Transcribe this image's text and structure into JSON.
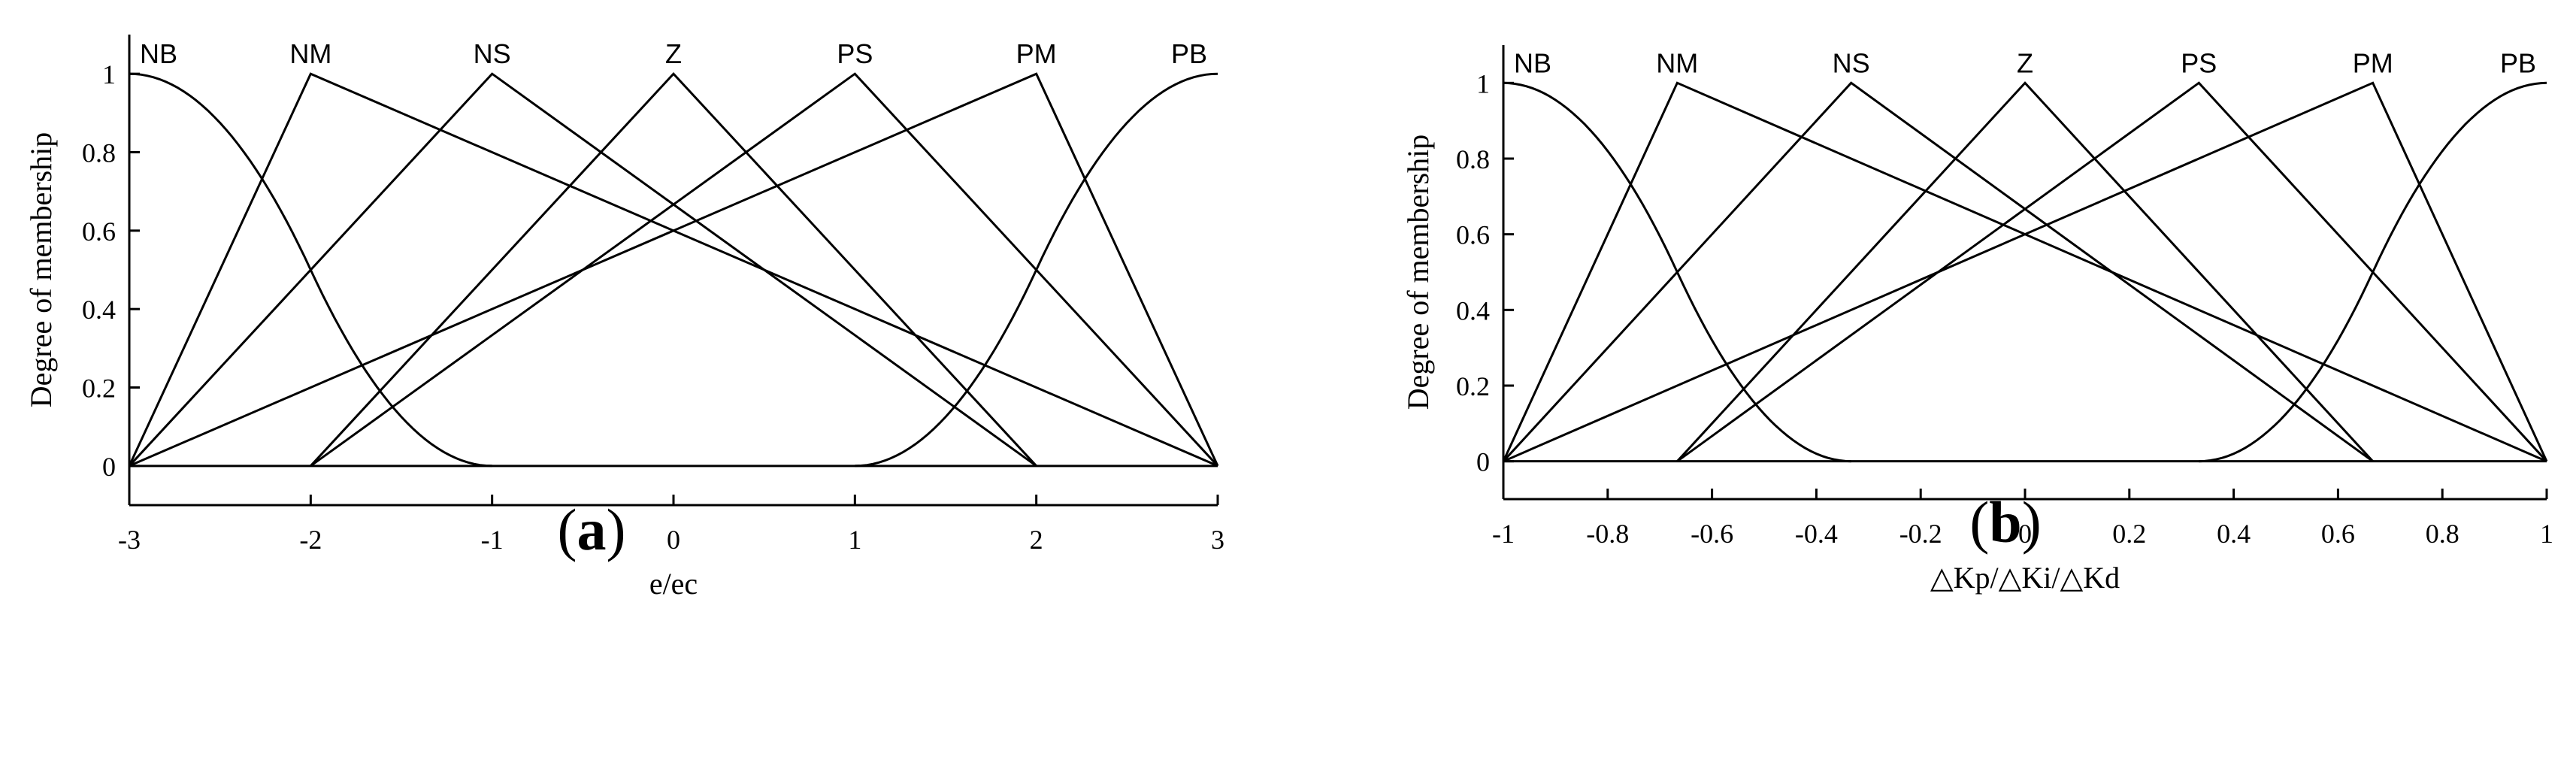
{
  "chart_data": [
    {
      "type": "line",
      "panel": "a",
      "title": "",
      "xlabel": "e/ec",
      "ylabel": "Degree of membership",
      "xlim": [
        -3,
        3
      ],
      "ylim": [
        -0.1,
        1.1
      ],
      "xticks": [
        "-3",
        "-2",
        "-1",
        "0",
        "1",
        "2",
        "3"
      ],
      "yticks": [
        "0",
        "0.2",
        "0.4",
        "0.6",
        "0.8",
        "1"
      ],
      "grid": false,
      "series": [
        {
          "name": "NB",
          "shape": "zmf",
          "params": [
            -3,
            -1
          ],
          "x": [
            -3,
            -2,
            -1
          ],
          "y": [
            1,
            0.5,
            0
          ]
        },
        {
          "name": "NM",
          "shape": "trimf",
          "x": [
            -3,
            -2,
            3
          ],
          "y": [
            0,
            1,
            0
          ]
        },
        {
          "name": "NS",
          "shape": "trimf",
          "x": [
            -3,
            -1,
            2
          ],
          "y": [
            0,
            1,
            0
          ]
        },
        {
          "name": "Z",
          "shape": "trimf",
          "x": [
            -2,
            0,
            2
          ],
          "y": [
            0,
            1,
            0
          ]
        },
        {
          "name": "PS",
          "shape": "trimf",
          "x": [
            -2,
            1,
            3
          ],
          "y": [
            0,
            1,
            0
          ]
        },
        {
          "name": "PM",
          "shape": "trimf",
          "x": [
            -3,
            2,
            3
          ],
          "y": [
            0,
            1,
            0
          ]
        },
        {
          "name": "PB",
          "shape": "smf",
          "params": [
            1,
            3
          ],
          "x": [
            1,
            2,
            3
          ],
          "y": [
            0,
            0.5,
            1
          ]
        }
      ]
    },
    {
      "type": "line",
      "panel": "b",
      "title": "",
      "xlabel": "△Kp/△Ki/△Kd",
      "ylabel": "Degree of membership",
      "xlim": [
        -1,
        1
      ],
      "ylim": [
        -0.1,
        1.1
      ],
      "xticks": [
        "-1",
        "-0.8",
        "-0.6",
        "-0.4",
        "-0.2",
        "0",
        "0.2",
        "0.4",
        "0.6",
        "0.8",
        "1"
      ],
      "yticks": [
        "0",
        "0.2",
        "0.4",
        "0.6",
        "0.8",
        "1"
      ],
      "grid": false,
      "series": [
        {
          "name": "NB",
          "shape": "zmf",
          "params": [
            -1,
            -0.3333
          ],
          "x": [
            -1,
            -0.6667,
            -0.3333
          ],
          "y": [
            1,
            0.5,
            0
          ]
        },
        {
          "name": "NM",
          "shape": "trimf",
          "x": [
            -1,
            -0.6667,
            1
          ],
          "y": [
            0,
            1,
            0
          ]
        },
        {
          "name": "NS",
          "shape": "trimf",
          "x": [
            -1,
            -0.3333,
            0.6667
          ],
          "y": [
            0,
            1,
            0
          ]
        },
        {
          "name": "Z",
          "shape": "trimf",
          "x": [
            -0.6667,
            0,
            0.6667
          ],
          "y": [
            0,
            1,
            0
          ]
        },
        {
          "name": "PS",
          "shape": "trimf",
          "x": [
            -0.6667,
            0.3333,
            1
          ],
          "y": [
            0,
            1,
            0
          ]
        },
        {
          "name": "PM",
          "shape": "trimf",
          "x": [
            -1,
            0.6667,
            1
          ],
          "y": [
            0,
            1,
            0
          ]
        },
        {
          "name": "PB",
          "shape": "smf",
          "params": [
            0.3333,
            1
          ],
          "x": [
            0.3333,
            0.6667,
            1
          ],
          "y": [
            0,
            0.5,
            1
          ]
        }
      ]
    }
  ],
  "panel_labels": [
    "a",
    "b"
  ],
  "style": {
    "line_color": "#000000",
    "background": "#ffffff"
  }
}
